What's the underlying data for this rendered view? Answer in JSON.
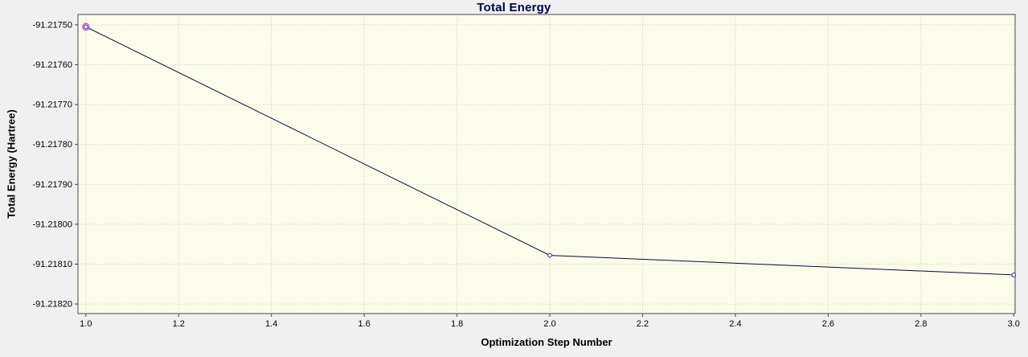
{
  "chart_data": {
    "type": "line",
    "title": "Total Energy",
    "xlabel": "Optimization Step Number",
    "ylabel": "Total Energy (Hartree)",
    "x": [
      1.0,
      2.0,
      3.0
    ],
    "y": [
      -91.217505,
      -91.218078,
      -91.218127
    ],
    "x_ticks": [
      1.0,
      1.2,
      1.4,
      1.6,
      1.8,
      2.0,
      2.2,
      2.4,
      2.6,
      2.8,
      3.0
    ],
    "x_tick_labels": [
      "1.0",
      "1.2",
      "1.4",
      "1.6",
      "1.8",
      "2.0",
      "2.2",
      "2.4",
      "2.6",
      "2.8",
      "3.0"
    ],
    "y_ticks": [
      -91.2175,
      -91.2176,
      -91.2177,
      -91.2178,
      -91.2179,
      -91.218,
      -91.2181,
      -91.2182
    ],
    "y_tick_labels": [
      "-91.21750",
      "-91.21760",
      "-91.21770",
      "-91.21780",
      "-91.21790",
      "-91.21800",
      "-91.21810",
      "-91.21820"
    ],
    "xlim": [
      0.983,
      3.003
    ],
    "ylim": [
      -91.218224,
      -91.217474
    ],
    "grid": true,
    "legend": "none",
    "selected_point_index": 0,
    "colors": {
      "outer_background": "#f0f0f0",
      "plot_background": "#fcfcea",
      "grid": "#c9c9c9",
      "border": "#4a4a4a",
      "line": "#0b0b3a",
      "marker_stroke": "#2a2aa8",
      "marker_fill": "#fcfcea",
      "selected_ring": "#c44fc4",
      "axis_text": "#000000",
      "title_color": "#000050"
    }
  }
}
